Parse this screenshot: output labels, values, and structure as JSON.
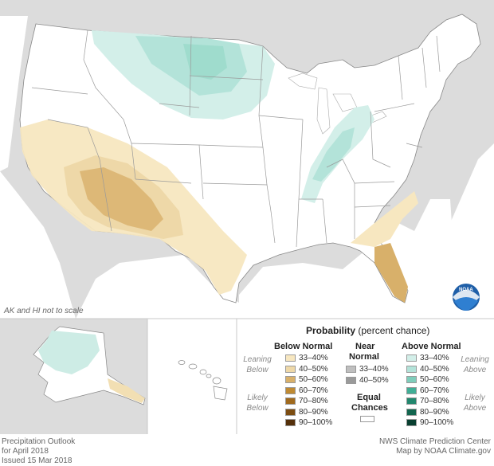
{
  "map": {
    "note": "AK and HI not to scale",
    "logo_text": "NOAA"
  },
  "legend": {
    "title_bold": "Probability",
    "title_rest": "(percent chance)",
    "below_header": "Below Normal",
    "near_header_line1": "Near",
    "near_header_line2": "Normal",
    "above_header": "Above Normal",
    "leaning_below": [
      "Leaning",
      "Below"
    ],
    "likely_below": [
      "Likely",
      "Below"
    ],
    "leaning_above": [
      "Leaning",
      "Above"
    ],
    "likely_above": [
      "Likely",
      "Above"
    ],
    "equal_chances": [
      "Equal",
      "Chances"
    ],
    "below": [
      {
        "range": "33–40%",
        "color": "#f7e7c0"
      },
      {
        "range": "40–50%",
        "color": "#eed8a8"
      },
      {
        "range": "50–60%",
        "color": "#d8b06a"
      },
      {
        "range": "60–70%",
        "color": "#bf8a33"
      },
      {
        "range": "70–80%",
        "color": "#a06a1e"
      },
      {
        "range": "80–90%",
        "color": "#7c4d12"
      },
      {
        "range": "90–100%",
        "color": "#54300a"
      }
    ],
    "near": [
      {
        "range": "33–40%",
        "color": "#bfbfbf"
      },
      {
        "range": "40–50%",
        "color": "#9a9a9a"
      }
    ],
    "above": [
      {
        "range": "33–40%",
        "color": "#d3efe9"
      },
      {
        "range": "40–50%",
        "color": "#b3e3d9"
      },
      {
        "range": "50–60%",
        "color": "#7fcdbb"
      },
      {
        "range": "60–70%",
        "color": "#41ae96"
      },
      {
        "range": "70–80%",
        "color": "#23876e"
      },
      {
        "range": "80–90%",
        "color": "#13664f"
      },
      {
        "range": "90–100%",
        "color": "#083f30"
      }
    ],
    "equal_color": "#ffffff"
  },
  "footer": {
    "title": "Precipitation Outlook",
    "period": "for April 2018",
    "issued": "Issued 15 Mar 2018",
    "credit1": "NWS Climate Prediction Center",
    "credit2": "Map by NOAA Climate.gov"
  }
}
